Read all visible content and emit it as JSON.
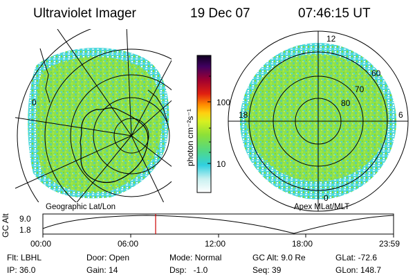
{
  "header": {
    "title": "Ultraviolet Imager",
    "date": "19 Dec 07",
    "time": "07:46:15 UT"
  },
  "colorbar": {
    "unit_label": "photon cm⁻²s⁻¹",
    "ticks": [
      "100",
      "10"
    ]
  },
  "geo_map": {
    "label": "Geographic Lat/Lon",
    "lon_tick": "0"
  },
  "polar_map": {
    "label": "Apex MLat/MLT",
    "mlt_labels": {
      "top": "12",
      "left": "18",
      "right": "6",
      "bottom": "0"
    },
    "mlat_labels": [
      "60",
      "70",
      "80"
    ]
  },
  "altitude_plot": {
    "y_label": "GC Alt",
    "y_ticks": [
      "9.0",
      "1.8"
    ],
    "x_ticks": [
      "00:00",
      "06:00",
      "12:00",
      "18:00",
      "23:59"
    ],
    "current_time_marker": "07:46:15",
    "marker_color": "#cc0000"
  },
  "info": {
    "row1": {
      "flt": "Flt: LBHL",
      "door": "Door: Open",
      "mode": "Mode: Normal",
      "gcalt": "GC Alt: 9.0 Re",
      "glat": "GLat: -72.6"
    },
    "row2": {
      "ip": "IP: 36.0",
      "gain": "Gain: 14",
      "dsp": "Dsp:   -1.0",
      "seq": "Seq: 39",
      "glon": "GLon: 148.7"
    }
  },
  "palette": {
    "background": "#ffffff",
    "aurora_green": "#7fdc3c",
    "aurora_cyan": "#40d8e8"
  }
}
